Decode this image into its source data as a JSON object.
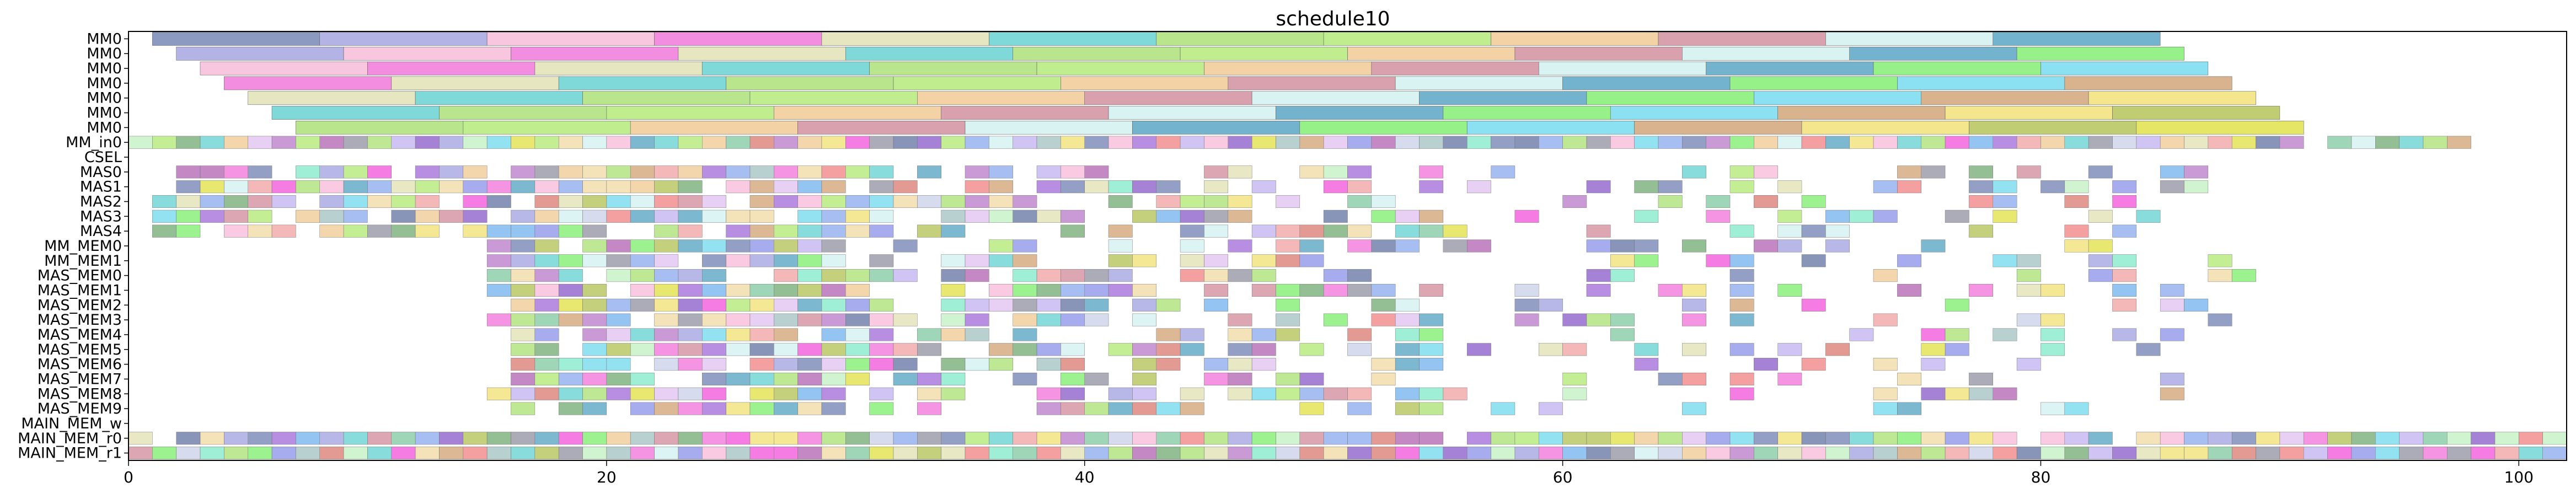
{
  "chart_data": {
    "type": "gantt",
    "title": "schedule10",
    "xlabel": "",
    "ylabel": "",
    "xlim": [
      0,
      102
    ],
    "x_ticks": [
      "0",
      "20",
      "40",
      "60",
      "80",
      "100"
    ],
    "x_tick_values": [
      0,
      20,
      40,
      60,
      80,
      100
    ],
    "grid": false,
    "legend": "none",
    "rows": [
      "MM0",
      "MM0",
      "MM0",
      "MM0",
      "MM0",
      "MM0",
      "MM0",
      "MM_in0",
      "CSEL",
      "MAS0",
      "MAS1",
      "MAS2",
      "MAS3",
      "MAS4",
      "MM_MEM0",
      "MM_MEM1",
      "MAS_MEM0",
      "MAS_MEM1",
      "MAS_MEM2",
      "MAS_MEM3",
      "MAS_MEM4",
      "MAS_MEM5",
      "MAS_MEM6",
      "MAS_MEM7",
      "MAS_MEM8",
      "MAS_MEM9",
      "MAIN_MEM_w",
      "MAIN_MEM_r0",
      "MAIN_MEM_r1"
    ],
    "mm_tasks": [
      {
        "row": 0,
        "start": 1.0,
        "duration": 7.0,
        "count": 12
      },
      {
        "row": 1,
        "start": 2.0,
        "duration": 7.0,
        "count": 12
      },
      {
        "row": 2,
        "start": 3.0,
        "duration": 7.0,
        "count": 12
      },
      {
        "row": 3,
        "start": 4.0,
        "duration": 7.0,
        "count": 12
      },
      {
        "row": 4,
        "start": 5.0,
        "duration": 7.0,
        "count": 12
      },
      {
        "row": 5,
        "start": 6.0,
        "duration": 7.0,
        "count": 12
      },
      {
        "row": 6,
        "start": 7.0,
        "duration": 7.0,
        "count": 12
      }
    ],
    "unit_tasks": [
      {
        "row": 7,
        "start": 0.0,
        "end": 98.0
      },
      {
        "row": 9,
        "start": 1.0,
        "end": 91.0
      },
      {
        "row": 10,
        "start": 1.0,
        "end": 90.0
      },
      {
        "row": 11,
        "start": 1.0,
        "end": 89.0
      },
      {
        "row": 12,
        "start": 1.0,
        "end": 88.0
      },
      {
        "row": 13,
        "start": 1.0,
        "end": 89.0
      },
      {
        "row": 14,
        "start": 15.0,
        "end": 91.0
      },
      {
        "row": 15,
        "start": 15.0,
        "end": 91.0
      },
      {
        "row": 16,
        "start": 15.0,
        "end": 91.0
      },
      {
        "row": 17,
        "start": 15.0,
        "end": 90.0
      },
      {
        "row": 18,
        "start": 16.0,
        "end": 87.0
      },
      {
        "row": 19,
        "start": 15.0,
        "end": 88.0
      },
      {
        "row": 20,
        "start": 16.0,
        "end": 86.0
      },
      {
        "row": 21,
        "start": 16.0,
        "end": 86.0
      },
      {
        "row": 22,
        "start": 16.0,
        "end": 86.0
      },
      {
        "row": 23,
        "start": 16.0,
        "end": 87.0
      },
      {
        "row": 24,
        "start": 15.0,
        "end": 86.0
      },
      {
        "row": 25,
        "start": 16.0,
        "end": 86.0
      },
      {
        "row": 27,
        "start": 0.0,
        "end": 102.0
      },
      {
        "row": 28,
        "start": 0.0,
        "end": 102.0
      }
    ],
    "palette": [
      "#6f7fb0",
      "#7fe8c8",
      "#a8e070",
      "#b878c8",
      "#7aee6a",
      "#8aa8ee",
      "#b060b0",
      "#a0a0e0",
      "#d8786e",
      "#b0e870",
      "#8890e8",
      "#6ed8ee",
      "#f050d8",
      "#f0d8a0",
      "#f8b8d8",
      "#a068d8",
      "#f0c890",
      "#8858c8",
      "#d0a070",
      "#9090a0",
      "#70a870",
      "#f070d8",
      "#c0f0c0",
      "#d08898",
      "#70b0ee",
      "#f0e070",
      "#80c8a0",
      "#c8d0e8",
      "#e0e0b0",
      "#f08080",
      "#d0f0f0",
      "#e0c0f0",
      "#b0c050",
      "#6070a0",
      "#a0c0c0",
      "#60d0d0",
      "#f0a0a0",
      "#50a0c0",
      "#c0b0f0",
      "#e0e040"
    ]
  }
}
